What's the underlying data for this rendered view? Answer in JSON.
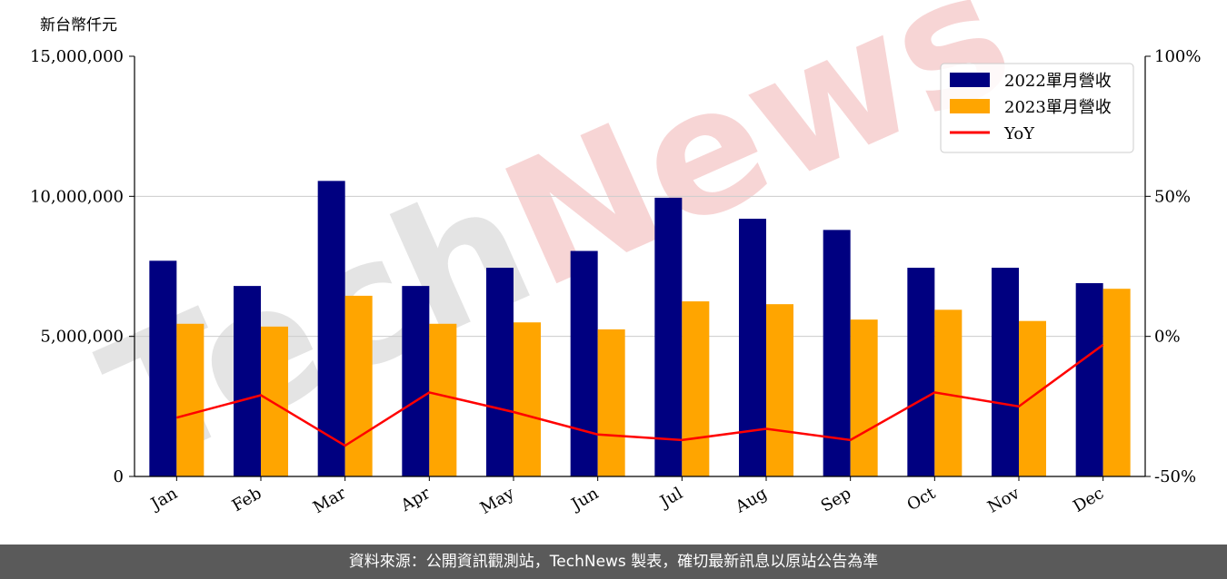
{
  "chart_data": {
    "type": "bar",
    "y_unit_label": "新台幣仟元",
    "categories": [
      "Jan",
      "Feb",
      "Mar",
      "Apr",
      "May",
      "Jun",
      "Jul",
      "Aug",
      "Sep",
      "Oct",
      "Nov",
      "Dec"
    ],
    "series": [
      {
        "name": "2022單月營收",
        "type": "bar",
        "axis": "left",
        "color": "#000080",
        "values": [
          7700000,
          6800000,
          10550000,
          6800000,
          7450000,
          8050000,
          9950000,
          9200000,
          8800000,
          7450000,
          7450000,
          6900000
        ]
      },
      {
        "name": "2023單月營收",
        "type": "bar",
        "axis": "left",
        "color": "#FFA500",
        "values": [
          5450000,
          5350000,
          6450000,
          5450000,
          5500000,
          5250000,
          6250000,
          6150000,
          5600000,
          5950000,
          5550000,
          6700000
        ]
      },
      {
        "name": "YoY",
        "type": "line",
        "axis": "right",
        "color": "#FF0000",
        "values": [
          -29,
          -21,
          -39,
          -20,
          -27,
          -35,
          -37,
          -33,
          -37,
          -20,
          -25,
          -3
        ]
      }
    ],
    "ylim": [
      0,
      15000000
    ],
    "yticks": [
      "0",
      "5,000,000",
      "10,000,000",
      "15,000,000"
    ],
    "y2lim": [
      -50,
      100
    ],
    "y2ticks": [
      "-50%",
      "0%",
      "50%",
      "100%"
    ],
    "grid": "horizontal",
    "legend_position": "top-right"
  },
  "watermark": "TechNews",
  "footer": {
    "source_text": "資料來源：公開資訊觀測站，TechNews 製表，確切最新訊息以原站公告為準"
  }
}
